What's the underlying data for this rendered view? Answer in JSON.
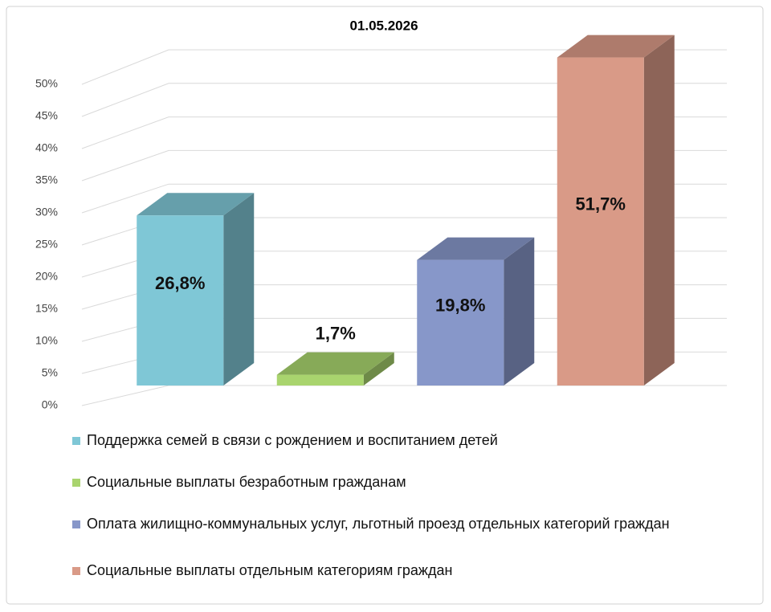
{
  "chart_data": {
    "type": "bar3d",
    "title": "01.05.2026",
    "categories": [
      null
    ],
    "series": [
      {
        "name": "Поддержка семей в связи с рождением и воспитанием детей",
        "color": "#7fc7d6",
        "values": [
          26.8
        ],
        "value_labels": [
          "26,8%"
        ]
      },
      {
        "name": "Социальные выплаты безработным гражданам",
        "color": "#a9d46e",
        "values": [
          1.7
        ],
        "value_labels": [
          "1,7%"
        ]
      },
      {
        "name": "Оплата жилищно-коммунальных услуг, льготный проезд отдельных категорий граждан",
        "color": "#8797c9",
        "values": [
          19.8
        ],
        "value_labels": [
          "19,8%"
        ]
      },
      {
        "name": "Социальные выплаты отдельным категориям граждан",
        "color": "#d99a87",
        "values": [
          51.7
        ],
        "value_labels": [
          "51,7%"
        ]
      }
    ],
    "ylim": [
      0,
      50
    ],
    "yticks": [
      {
        "value": 0,
        "label": "0%"
      },
      {
        "value": 5,
        "label": "5%"
      },
      {
        "value": 10,
        "label": "10%"
      },
      {
        "value": 15,
        "label": "15%"
      },
      {
        "value": 20,
        "label": "20%"
      },
      {
        "value": 25,
        "label": "25%"
      },
      {
        "value": 30,
        "label": "30%"
      },
      {
        "value": 35,
        "label": "35%"
      },
      {
        "value": 40,
        "label": "40%"
      },
      {
        "value": 45,
        "label": "45%"
      },
      {
        "value": 50,
        "label": "50%"
      }
    ],
    "grid": true
  }
}
